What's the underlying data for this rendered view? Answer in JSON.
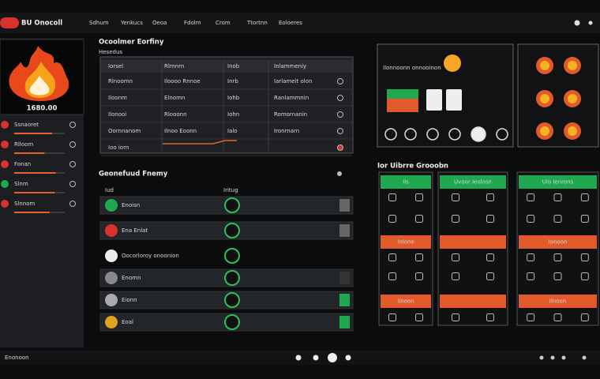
{
  "topbar": {
    "logo": "BU Onocoll",
    "nav": [
      "Sdhum",
      "Yenkucs",
      "Oeoa",
      "Fdolm",
      "Crom",
      "Ttortnn",
      "Eoloeres"
    ]
  },
  "sidebar": {
    "value": "1680.00",
    "rows": [
      {
        "label": "Ssnaoret",
        "progress": 75,
        "color": "#d8332a"
      },
      {
        "label": "Rlloom",
        "progress": 60,
        "color": "#d8332a"
      },
      {
        "label": "Fonan",
        "progress": 82,
        "color": "#d8332a"
      },
      {
        "label": "Slnm",
        "progress": 80,
        "color": "#1fa84f"
      },
      {
        "label": "Slnnom",
        "progress": 70,
        "color": "#d8332a"
      }
    ]
  },
  "table_panel": {
    "title": "Ocoolmer Eorfiny",
    "subtitle": "Hesedus",
    "header": [
      "Iorsel",
      "Rlmnrn",
      "Inob",
      "Inlammeniy"
    ],
    "rows": [
      [
        "Rlnoomn",
        "Iloooo Rnnoe",
        "Inrb",
        "Iarlameit olon"
      ],
      [
        "Iloonm",
        "Elnomn",
        "Iohb",
        "Ranlammnin"
      ],
      [
        "Ilonooi",
        "Rlooonn",
        "Iohn",
        "Romornanin"
      ],
      [
        "Oornnanom",
        "Ilnoo Eoonn",
        "Ialo",
        "Ironrnarn"
      ],
      [
        "Ioo iorn",
        "",
        "",
        ""
      ]
    ]
  },
  "list_panel": {
    "title": "Geonefuud Fnemy",
    "header": [
      "Iud",
      "Iritug"
    ],
    "rows": [
      {
        "label": "Enoisn",
        "color": "#1fa84f"
      },
      {
        "label": "Ena Enlat",
        "color": "#d8332a"
      },
      {
        "label": "Oocorloroy onoonion",
        "color": "#eeeeee"
      },
      {
        "label": "Enomn",
        "color": "#888888"
      },
      {
        "label": "Eionn",
        "color": "#aaaaaa"
      },
      {
        "label": "Eoal",
        "color": "#e0a020"
      }
    ]
  },
  "device_panel": {
    "label": "Ilonnoonn onnooinon"
  },
  "grid_panel": {
    "title": "Ior Uibrre Grooobn",
    "groups": [
      {
        "headers": [
          "Ils",
          "Inlone",
          "Ilnoon"
        ]
      },
      {
        "headers": [
          "Uvoor Ieolosn",
          "",
          ""
        ]
      },
      {
        "headers": [
          "Ulo Ienrons",
          "Ionoon",
          "Ilnoon"
        ]
      }
    ]
  },
  "bottombar": {
    "left": "Enonoon"
  }
}
